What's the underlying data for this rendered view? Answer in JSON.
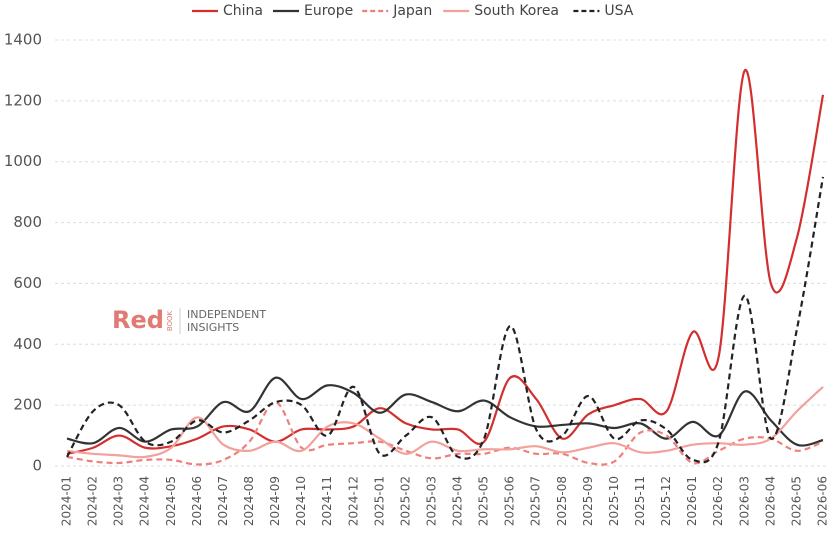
{
  "chart_data": {
    "type": "line",
    "categories": [
      "2024-01",
      "2024-02",
      "2024-03",
      "2024-04",
      "2024-05",
      "2024-06",
      "2024-07",
      "2024-08",
      "2024-09",
      "2024-10",
      "2024-11",
      "2024-12",
      "2025-01",
      "2025-02",
      "2025-03",
      "2025-04",
      "2025-05",
      "2025-06",
      "2025-07",
      "2025-08",
      "2025-09",
      "2025-10",
      "2025-11",
      "2025-12",
      "2026-01",
      "2026-02",
      "2026-03",
      "2026-04",
      "2026-05",
      "2026-06"
    ],
    "series": [
      {
        "name": "China",
        "color": "#d32f2f",
        "dash": false,
        "values": [
          40,
          60,
          100,
          60,
          65,
          90,
          130,
          120,
          80,
          120,
          120,
          130,
          190,
          140,
          120,
          120,
          80,
          290,
          220,
          90,
          170,
          200,
          220,
          180,
          440,
          360,
          1300,
          600,
          750,
          1220
        ]
      },
      {
        "name": "Europe",
        "color": "#333333",
        "dash": false,
        "values": [
          90,
          75,
          125,
          80,
          120,
          130,
          210,
          180,
          290,
          220,
          265,
          240,
          175,
          235,
          210,
          180,
          215,
          160,
          130,
          135,
          140,
          125,
          140,
          90,
          145,
          100,
          245,
          150,
          70,
          85
        ]
      },
      {
        "name": "Japan",
        "color": "#ef7f7a",
        "dash": true,
        "values": [
          30,
          15,
          10,
          20,
          20,
          5,
          20,
          80,
          210,
          60,
          70,
          75,
          80,
          50,
          25,
          40,
          40,
          60,
          40,
          40,
          10,
          15,
          110,
          100,
          10,
          50,
          90,
          90,
          50,
          80
        ]
      },
      {
        "name": "South Korea",
        "color": "#f2a19b",
        "dash": false,
        "values": [
          50,
          40,
          35,
          30,
          60,
          160,
          70,
          50,
          80,
          50,
          130,
          140,
          90,
          40,
          80,
          50,
          55,
          55,
          65,
          45,
          60,
          75,
          45,
          50,
          70,
          75,
          70,
          90,
          180,
          260
        ]
      },
      {
        "name": "USA",
        "color": "#222222",
        "dash": true,
        "values": [
          30,
          180,
          200,
          80,
          80,
          150,
          110,
          150,
          210,
          200,
          100,
          260,
          40,
          100,
          160,
          30,
          90,
          460,
          120,
          100,
          230,
          90,
          150,
          120,
          20,
          80,
          560,
          90,
          450,
          950
        ]
      }
    ],
    "ylim": [
      0,
      1400
    ],
    "yticks": [
      0,
      200,
      400,
      600,
      800,
      1000,
      1200,
      1400
    ],
    "grid": true,
    "legend": "top",
    "watermark": {
      "brand": "Red",
      "sub": "BOOK",
      "lines": [
        "INDEPENDENT",
        "INSIGHTS"
      ]
    }
  }
}
